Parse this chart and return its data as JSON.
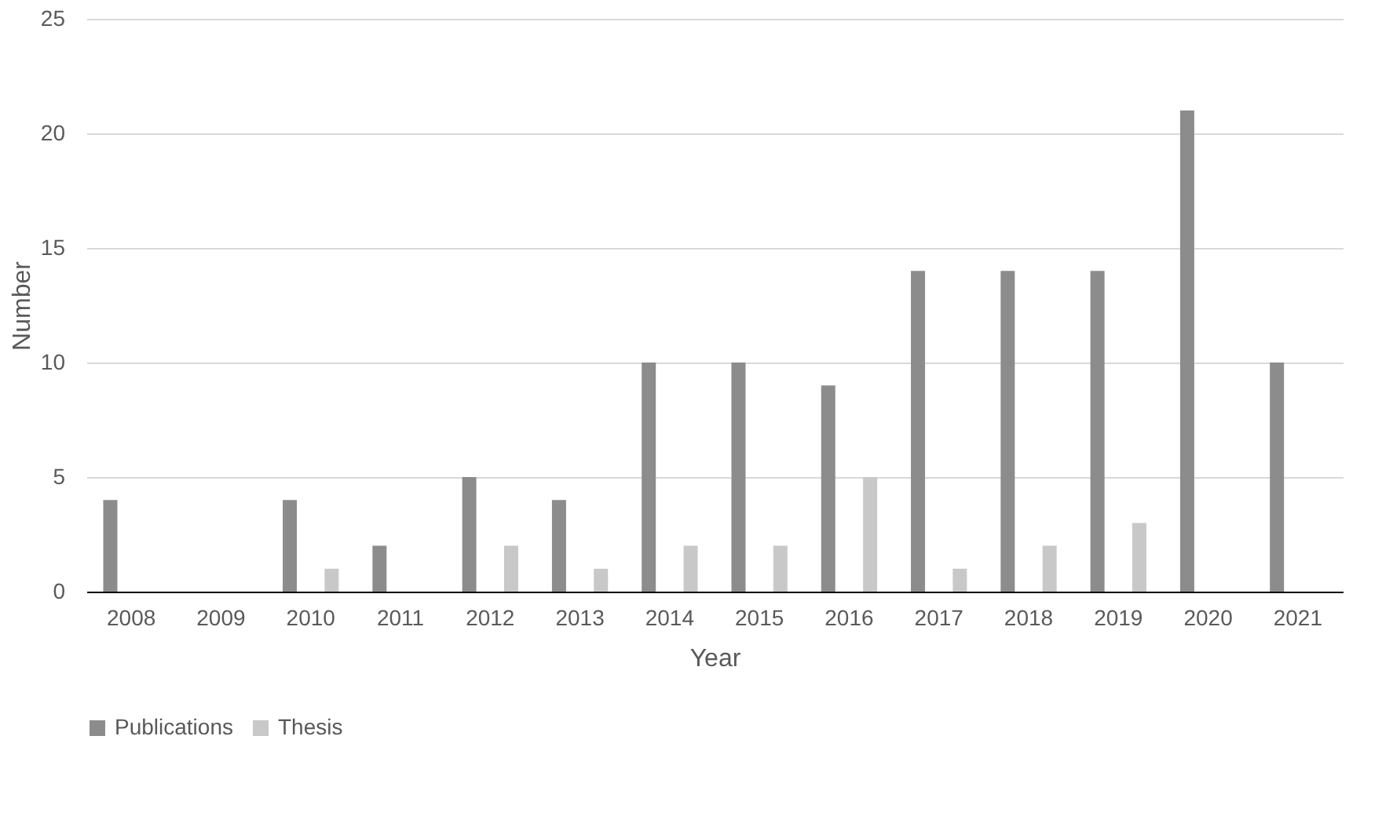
{
  "chart_data": {
    "type": "bar",
    "xlabel": "Year",
    "ylabel": "Number",
    "categories": [
      "2008",
      "2009",
      "2010",
      "2011",
      "2012",
      "2013",
      "2014",
      "2015",
      "2016",
      "2017",
      "2018",
      "2019",
      "2020",
      "2021"
    ],
    "series": [
      {
        "name": "Publications",
        "color": "#8c8c8c",
        "values": [
          4,
          0,
          4,
          2,
          5,
          4,
          10,
          10,
          9,
          14,
          14,
          14,
          21,
          10
        ]
      },
      {
        "name": "Thesis",
        "color": "#c8c8c8",
        "values": [
          0,
          0,
          1,
          0,
          2,
          1,
          2,
          2,
          5,
          1,
          2,
          3,
          0,
          0
        ]
      }
    ],
    "ylim": [
      0,
      25
    ],
    "yticks": [
      0,
      5,
      10,
      15,
      20,
      25
    ],
    "grid": "y",
    "legend": "bottom"
  }
}
